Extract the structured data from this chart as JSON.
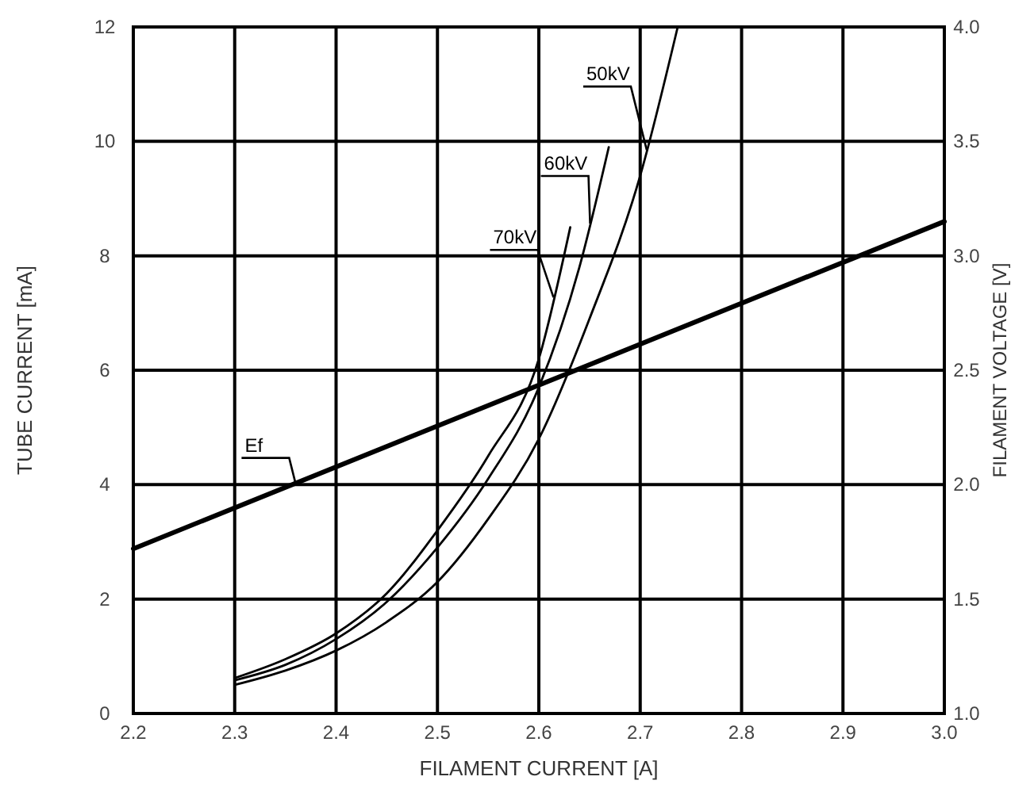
{
  "chart_data": {
    "type": "line",
    "xlabel": "FILAMENT CURRENT  [A]",
    "ylabel": "TUBE CURRENT  [mA]",
    "y2label": "FILAMENT VOLTAGE  [V]",
    "xlim": [
      2.2,
      3.0
    ],
    "xticks": [
      2.2,
      2.3,
      2.4,
      2.5,
      2.6,
      2.7,
      2.8,
      2.9,
      {
        "value": 3.0,
        "label": "3.0"
      }
    ],
    "ylim": [
      0,
      12
    ],
    "yticks": [
      0,
      2,
      4,
      6,
      8,
      10,
      12
    ],
    "y2lim": [
      1.0,
      4.0
    ],
    "y2ticks": [
      {
        "value": 1.0,
        "label": "1.0"
      },
      1.5,
      {
        "value": 2.0,
        "label": "2.0"
      },
      2.5,
      {
        "value": 3.0,
        "label": "3.0"
      },
      3.5,
      {
        "value": 4.0,
        "label": "4.0"
      }
    ],
    "grid": true,
    "marker": "none",
    "line_style": "solid",
    "series": [
      {
        "name": "70kV",
        "color": "#000000",
        "x": [
          2.3,
          2.35,
          2.4,
          2.45,
          2.5,
          2.55,
          2.6,
          2.631
        ],
        "values": [
          0.62,
          0.95,
          1.4,
          2.1,
          3.2,
          4.5,
          6.2,
          8.5
        ]
      },
      {
        "name": "60kV",
        "color": "#000000",
        "x": [
          2.3,
          2.35,
          2.4,
          2.45,
          2.5,
          2.55,
          2.6,
          2.64,
          2.669
        ],
        "values": [
          0.58,
          0.85,
          1.3,
          1.95,
          2.9,
          4.1,
          5.7,
          7.8,
          9.9
        ]
      },
      {
        "name": "50kV",
        "color": "#000000",
        "x": [
          2.3,
          2.35,
          2.4,
          2.45,
          2.5,
          2.55,
          2.6,
          2.65,
          2.7,
          2.737
        ],
        "values": [
          0.5,
          0.75,
          1.1,
          1.6,
          2.3,
          3.4,
          4.8,
          6.9,
          9.4,
          12
        ]
      },
      {
        "name": "Ef",
        "color": "#000000",
        "axis": "y2",
        "x": [
          2.2,
          3.0
        ],
        "values": [
          1.72,
          3.15
        ]
      }
    ]
  }
}
